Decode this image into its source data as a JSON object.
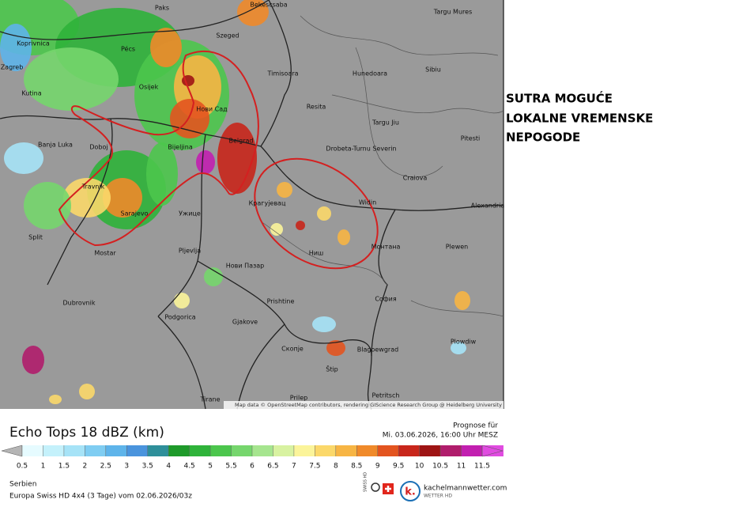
{
  "map": {
    "attribution": "Map data © OpenStreetMap contributors, rendering GIScience Research Group @ Heidelberg University",
    "cities": [
      "Paks",
      "Bekescsaba",
      "Targu Mures",
      "Koprivnica",
      "Pécs",
      "Szeged",
      "Zagreb",
      "Osijek",
      "Timisoara",
      "Hunedoara",
      "Sibiu",
      "Kutina",
      "Нови Сад",
      "Resita",
      "Targu Jiu",
      "Bijeljina",
      "Belgrad",
      "Drobeta-Turnu Severin",
      "Pitesti",
      "Banja Luka",
      "Doboj",
      "Craiova",
      "Travnik",
      "Крагујевац",
      "Widin",
      "Alexandria",
      "Sarajevo",
      "Ужице",
      "Split",
      "Mostar",
      "Pljevlja",
      "Ниш",
      "Монтана",
      "Plewen",
      "Нови Пазар",
      "София",
      "Dubrovnik",
      "Prishtine",
      "Podgorica",
      "Gjakove",
      "Plowdiw",
      "Скопје",
      "Blagoewgrad",
      "Štip",
      "Tirane",
      "Prilep",
      "Petritsch"
    ]
  },
  "annotation": [
    "SUTRA MOGUĆE",
    "LOKALNE VREMENSKE",
    "NEPOGODE"
  ],
  "legend": {
    "title": "Echo Tops 18 dBZ (km)",
    "forecast_label": "Prognose für",
    "forecast_time": "Mi. 03.06.2026, 16:00 Uhr MESZ",
    "ticks": [
      0.5,
      1,
      1.5,
      2,
      2.5,
      3,
      3.5,
      4,
      4.5,
      5,
      5.5,
      6,
      6.5,
      7,
      7.5,
      8,
      8.5,
      9,
      9.5,
      10,
      10.5,
      11,
      11.5
    ],
    "colors": [
      "#e6fbff",
      "#c4f1fb",
      "#a6e3f7",
      "#7fcdf2",
      "#5eb4ea",
      "#4a94dd",
      "#2e8f9a",
      "#1e9a2a",
      "#2fb33a",
      "#4cc64d",
      "#76d66d",
      "#a6e58f",
      "#d8f2a1",
      "#fbf49a",
      "#fbd86a",
      "#f7b544",
      "#f08a2a",
      "#e3541f",
      "#c8261b",
      "#9e1414",
      "#b01d6c",
      "#c21fb0",
      "#e04be0"
    ]
  },
  "footer": {
    "region": "Serbien",
    "model": "Europa Swiss HD 4x4 (3 Tage) vom 02.06.2026/03z",
    "badge": "SWISS HD",
    "brand": "kachelmannwetter.com",
    "brand_sub": "WETTER HD",
    "logo_letter": "k."
  }
}
